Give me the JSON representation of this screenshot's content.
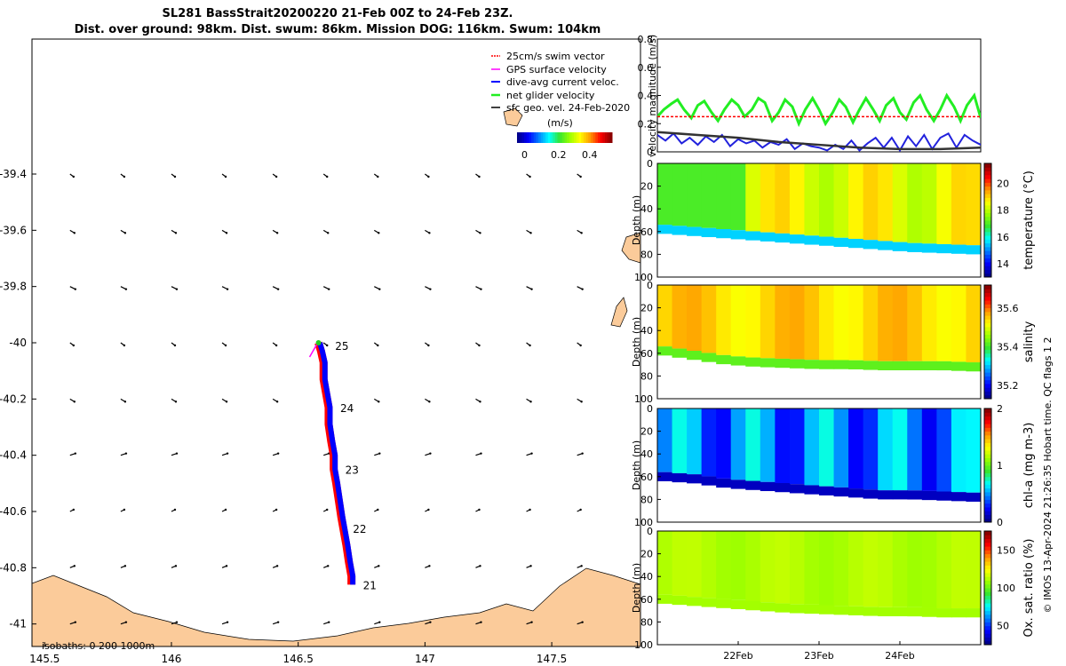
{
  "title": {
    "line1": "SL281 BassStrait20200220 21-Feb 00Z to 24-Feb 23Z.",
    "line2": "Dist. over ground: 98km. Dist. swum: 86km. Mission DOG: 116km. Swum: 104km"
  },
  "colors": {
    "land": "#fbcb9a",
    "track_red": "#ff0000",
    "track_blue": "#0000ff",
    "net_green": "#22ee22",
    "current_blue": "#2222dd",
    "sfc_black": "#333333"
  },
  "chart_data": [
    {
      "id": "map",
      "type": "scatter",
      "title": "",
      "xlabel": "",
      "ylabel": "",
      "xlim": [
        145.45,
        147.85
      ],
      "ylim": [
        -41.08,
        -38.92
      ],
      "x_ticks": [
        "145.5",
        "146",
        "146.5",
        "147",
        "147.5"
      ],
      "x_tick_values": [
        145.5,
        146,
        146.5,
        147,
        147.5
      ],
      "y_ticks": [
        "-39.4",
        "-39.6",
        "-39.8",
        "-40",
        "-40.2",
        "-40.4",
        "-40.6",
        "-40.8",
        "-41"
      ],
      "y_tick_values": [
        -39.4,
        -39.6,
        -39.8,
        -40,
        -40.2,
        -40.4,
        -40.6,
        -40.8,
        -41
      ],
      "legend": {
        "placement": "top-right",
        "entries": [
          "25cm/s swim vector",
          "GPS surface velocity",
          "dive-avg current veloc.",
          "net glider velocity",
          "sfc geo. vel. 24-Feb-2020"
        ]
      },
      "colorbar": {
        "label": "(m/s)",
        "ticks": [
          "0",
          "0.2",
          "0.4"
        ],
        "range": [
          0,
          0.5
        ]
      },
      "isobaths_label": "isobaths: 0   200  1000m",
      "day_labels": [
        {
          "label": "25",
          "lon": 146.6,
          "lat": -40.01
        },
        {
          "label": "24",
          "lon": 146.62,
          "lat": -40.23
        },
        {
          "label": "23",
          "lon": 146.64,
          "lat": -40.45
        },
        {
          "label": "22",
          "lon": 146.67,
          "lat": -40.66
        },
        {
          "label": "21",
          "lon": 146.71,
          "lat": -40.86
        }
      ],
      "track": {
        "lon": [
          146.58,
          146.59,
          146.6,
          146.6,
          146.61,
          146.62,
          146.62,
          146.63,
          146.64,
          146.64,
          146.65,
          146.66,
          146.67,
          146.68,
          146.69,
          146.7,
          146.71,
          146.71
        ],
        "lat": [
          -40.0,
          -40.03,
          -40.07,
          -40.13,
          -40.18,
          -40.23,
          -40.29,
          -40.35,
          -40.4,
          -40.45,
          -40.5,
          -40.56,
          -40.62,
          -40.67,
          -40.72,
          -40.78,
          -40.83,
          -40.86
        ]
      },
      "vector_grid": {
        "lons": [
          145.6,
          145.8,
          146.0,
          146.2,
          146.4,
          146.6,
          146.8,
          147.0,
          147.2,
          147.4,
          147.6
        ],
        "lats": [
          -39.4,
          -39.6,
          -39.8,
          -40.0,
          -40.2,
          -40.4,
          -40.6,
          -40.8,
          -41.0
        ]
      }
    },
    {
      "id": "velocity",
      "type": "line",
      "ylabel": "velocity magnitude (m/s)",
      "ylim": [
        0,
        0.8
      ],
      "y_ticks": [
        "0",
        "0.2",
        "0.4",
        "0.6",
        "0.8"
      ],
      "xlim": [
        0,
        4
      ],
      "series": [
        {
          "name": "net glider velocity",
          "x": [
            0,
            0.08,
            0.17,
            0.25,
            0.33,
            0.42,
            0.5,
            0.58,
            0.67,
            0.75,
            0.83,
            0.92,
            1.0,
            1.08,
            1.17,
            1.25,
            1.33,
            1.42,
            1.5,
            1.58,
            1.67,
            1.75,
            1.83,
            1.92,
            2.0,
            2.08,
            2.17,
            2.25,
            2.33,
            2.42,
            2.5,
            2.58,
            2.67,
            2.75,
            2.83,
            2.92,
            3.0,
            3.08,
            3.17,
            3.25,
            3.33,
            3.42,
            3.5,
            3.58,
            3.67,
            3.75,
            3.83,
            3.92,
            4.0
          ],
          "values": [
            0.25,
            0.3,
            0.34,
            0.37,
            0.3,
            0.24,
            0.33,
            0.36,
            0.28,
            0.22,
            0.3,
            0.37,
            0.33,
            0.25,
            0.3,
            0.38,
            0.35,
            0.22,
            0.28,
            0.37,
            0.32,
            0.2,
            0.3,
            0.38,
            0.3,
            0.2,
            0.28,
            0.37,
            0.32,
            0.21,
            0.3,
            0.38,
            0.3,
            0.22,
            0.33,
            0.38,
            0.28,
            0.23,
            0.35,
            0.4,
            0.3,
            0.22,
            0.3,
            0.4,
            0.32,
            0.22,
            0.33,
            0.4,
            0.24
          ]
        },
        {
          "name": "dive-avg current veloc.",
          "x": [
            0,
            0.1,
            0.2,
            0.3,
            0.4,
            0.5,
            0.6,
            0.7,
            0.8,
            0.9,
            1.0,
            1.1,
            1.2,
            1.3,
            1.4,
            1.5,
            1.6,
            1.7,
            1.8,
            1.9,
            2.0,
            2.1,
            2.2,
            2.3,
            2.4,
            2.5,
            2.6,
            2.7,
            2.8,
            2.9,
            3.0,
            3.1,
            3.2,
            3.3,
            3.4,
            3.5,
            3.6,
            3.7,
            3.8,
            3.9,
            4.0
          ],
          "values": [
            0.12,
            0.08,
            0.13,
            0.06,
            0.1,
            0.05,
            0.11,
            0.07,
            0.12,
            0.04,
            0.09,
            0.06,
            0.08,
            0.03,
            0.07,
            0.05,
            0.09,
            0.02,
            0.06,
            0.04,
            0.03,
            0.01,
            0.05,
            0.02,
            0.08,
            0.01,
            0.06,
            0.1,
            0.03,
            0.1,
            0.01,
            0.11,
            0.04,
            0.12,
            0.02,
            0.1,
            0.13,
            0.03,
            0.12,
            0.08,
            0.05
          ]
        },
        {
          "name": "25cm/s swim vector",
          "x": [
            0,
            4
          ],
          "values": [
            0.25,
            0.25
          ]
        },
        {
          "name": "sfc geo. vel. 24-Feb-2020",
          "x": [
            0,
            0.5,
            1.0,
            1.5,
            2.0,
            2.5,
            3.0,
            3.5,
            4.0
          ],
          "values": [
            0.14,
            0.12,
            0.1,
            0.07,
            0.05,
            0.03,
            0.02,
            0.02,
            0.03
          ]
        }
      ]
    },
    {
      "id": "temperature",
      "type": "heatmap",
      "ylabel": "Depth (m)",
      "colorbar_label": "temperature (°C)",
      "ylim": [
        100,
        0
      ],
      "y_ticks": [
        "0",
        "20",
        "40",
        "60",
        "80",
        "100"
      ],
      "cbar_range": [
        13,
        21.5
      ],
      "cbar_ticks": [
        "14",
        "16",
        "18",
        "20"
      ],
      "bottom_depth": [
        62,
        64,
        66,
        68,
        70,
        72,
        74,
        76,
        78,
        79,
        80
      ],
      "surface_value": 18.5,
      "deep_value": 15.5
    },
    {
      "id": "salinity",
      "type": "heatmap",
      "ylabel": "Depth (m)",
      "colorbar_label": "salinity",
      "ylim": [
        100,
        0
      ],
      "y_ticks": [
        "0",
        "20",
        "40",
        "60",
        "80",
        "100"
      ],
      "cbar_range": [
        35.13,
        35.72
      ],
      "cbar_ticks": [
        "35.2",
        "35.4",
        "35.6"
      ],
      "bottom_depth": [
        62,
        66,
        70,
        72,
        73,
        74,
        74,
        75,
        75,
        75,
        76
      ],
      "surface_value": 35.55,
      "deep_value": 35.42
    },
    {
      "id": "chla",
      "type": "heatmap",
      "ylabel": "Depth (m)",
      "colorbar_label": "chl-a (mg m-3)",
      "ylim": [
        100,
        0
      ],
      "y_ticks": [
        "0",
        "20",
        "40",
        "60",
        "80",
        "100"
      ],
      "cbar_range": [
        0,
        2
      ],
      "cbar_ticks": [
        "0",
        "1",
        "2"
      ],
      "bottom_depth": [
        64,
        66,
        70,
        72,
        74,
        76,
        78,
        80,
        80,
        81,
        82
      ],
      "surface_value": 0.45,
      "deep_value": 0.1
    },
    {
      "id": "oxygen",
      "type": "heatmap",
      "ylabel": "Depth (m)",
      "colorbar_label": "Ox. sat. ratio (%)",
      "ylim": [
        100,
        0
      ],
      "y_ticks": [
        "0",
        "20",
        "40",
        "60",
        "80",
        "100"
      ],
      "cbar_range": [
        25,
        175
      ],
      "cbar_ticks": [
        "50",
        "100",
        "150"
      ],
      "bottom_depth": [
        64,
        66,
        68,
        70,
        72,
        73,
        74,
        75,
        75,
        76,
        76
      ],
      "surface_value": 112,
      "deep_value": 110
    }
  ],
  "time_axis": {
    "ticks": [
      "22Feb",
      "23Feb",
      "24Feb"
    ],
    "tick_days": [
      1,
      2,
      3
    ]
  },
  "side_label": "© IMOS 13-Apr-2024 21:26:35 Hobart time. QC flags 1  2"
}
